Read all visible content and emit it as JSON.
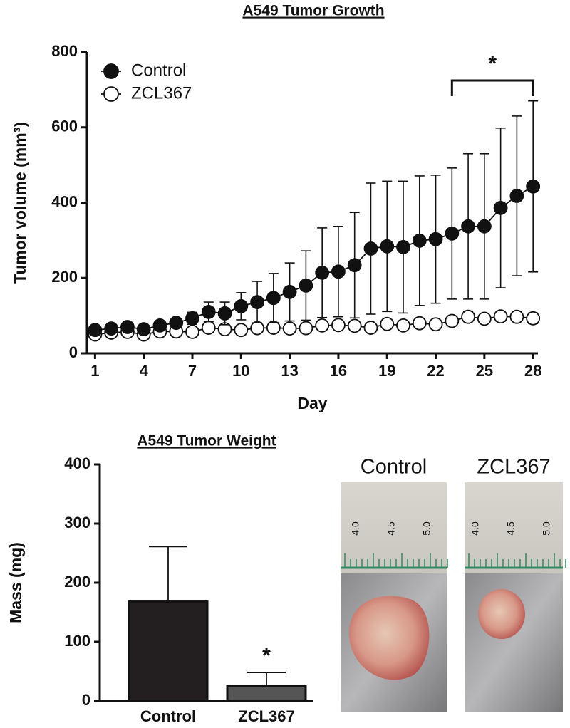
{
  "chart_data": [
    {
      "type": "line",
      "title": "A549 Tumor Growth",
      "x_label": "Day",
      "y_label": "Tumor volume (mm³)",
      "x": [
        1,
        2,
        3,
        4,
        5,
        6,
        7,
        8,
        9,
        10,
        11,
        12,
        13,
        14,
        15,
        16,
        17,
        18,
        19,
        20,
        21,
        22,
        23,
        24,
        25,
        26,
        27,
        28
      ],
      "series": [
        {
          "name": "Control",
          "color": "#111111",
          "marker_fill": "#111111",
          "values": [
            62,
            66,
            70,
            64,
            74,
            81,
            93,
            110,
            106,
            125,
            136,
            147,
            163,
            180,
            214,
            217,
            234,
            278,
            284,
            282,
            299,
            303,
            318,
            337,
            337,
            386,
            418,
            443
          ],
          "errors": [
            6,
            8,
            9,
            8,
            10,
            12,
            16,
            26,
            30,
            36,
            55,
            65,
            77,
            92,
            119,
            120,
            140,
            174,
            173,
            175,
            172,
            170,
            174,
            193,
            193,
            212,
            212,
            227
          ]
        },
        {
          "name": "ZCL367",
          "color": "#111111",
          "marker_fill": "#ffffff",
          "values": [
            50,
            55,
            57,
            50,
            58,
            58,
            57,
            68,
            64,
            62,
            67,
            68,
            66,
            67,
            74,
            75,
            73,
            68,
            78,
            74,
            80,
            77,
            86,
            97,
            92,
            98,
            97,
            93
          ],
          "errors": [
            6,
            6,
            7,
            6,
            7,
            7,
            7,
            8,
            8,
            8,
            8,
            9,
            9,
            9,
            10,
            10,
            10,
            10,
            11,
            11,
            11,
            11,
            12,
            13,
            12,
            13,
            13,
            14
          ]
        }
      ],
      "xlim": [
        0.5,
        28.3
      ],
      "xticks": [
        1,
        4,
        7,
        10,
        13,
        16,
        19,
        22,
        25,
        28
      ],
      "ylim": [
        0,
        800
      ],
      "yticks": [
        0,
        200,
        400,
        600,
        800
      ],
      "legend": "upper left",
      "significance": {
        "label": "*",
        "x": [
          23,
          28
        ]
      }
    },
    {
      "type": "bar",
      "title": "A549 Tumor Weight",
      "y_label": "Mass (mg)",
      "categories": [
        "Control",
        "ZCL367"
      ],
      "values": [
        168,
        25
      ],
      "errors": [
        93,
        23
      ],
      "colors": [
        "#231f20",
        "#555555"
      ],
      "significant": [
        false,
        true
      ],
      "significance_label": "*",
      "ylim": [
        0,
        400
      ],
      "yticks": [
        0,
        100,
        200,
        300,
        400
      ]
    }
  ],
  "photos": [
    {
      "caption": "Control",
      "ruler": [
        "4.0",
        "4.5",
        "5.0"
      ]
    },
    {
      "caption": "ZCL367",
      "ruler": [
        "4.0",
        "4.5",
        "5.0"
      ]
    }
  ]
}
